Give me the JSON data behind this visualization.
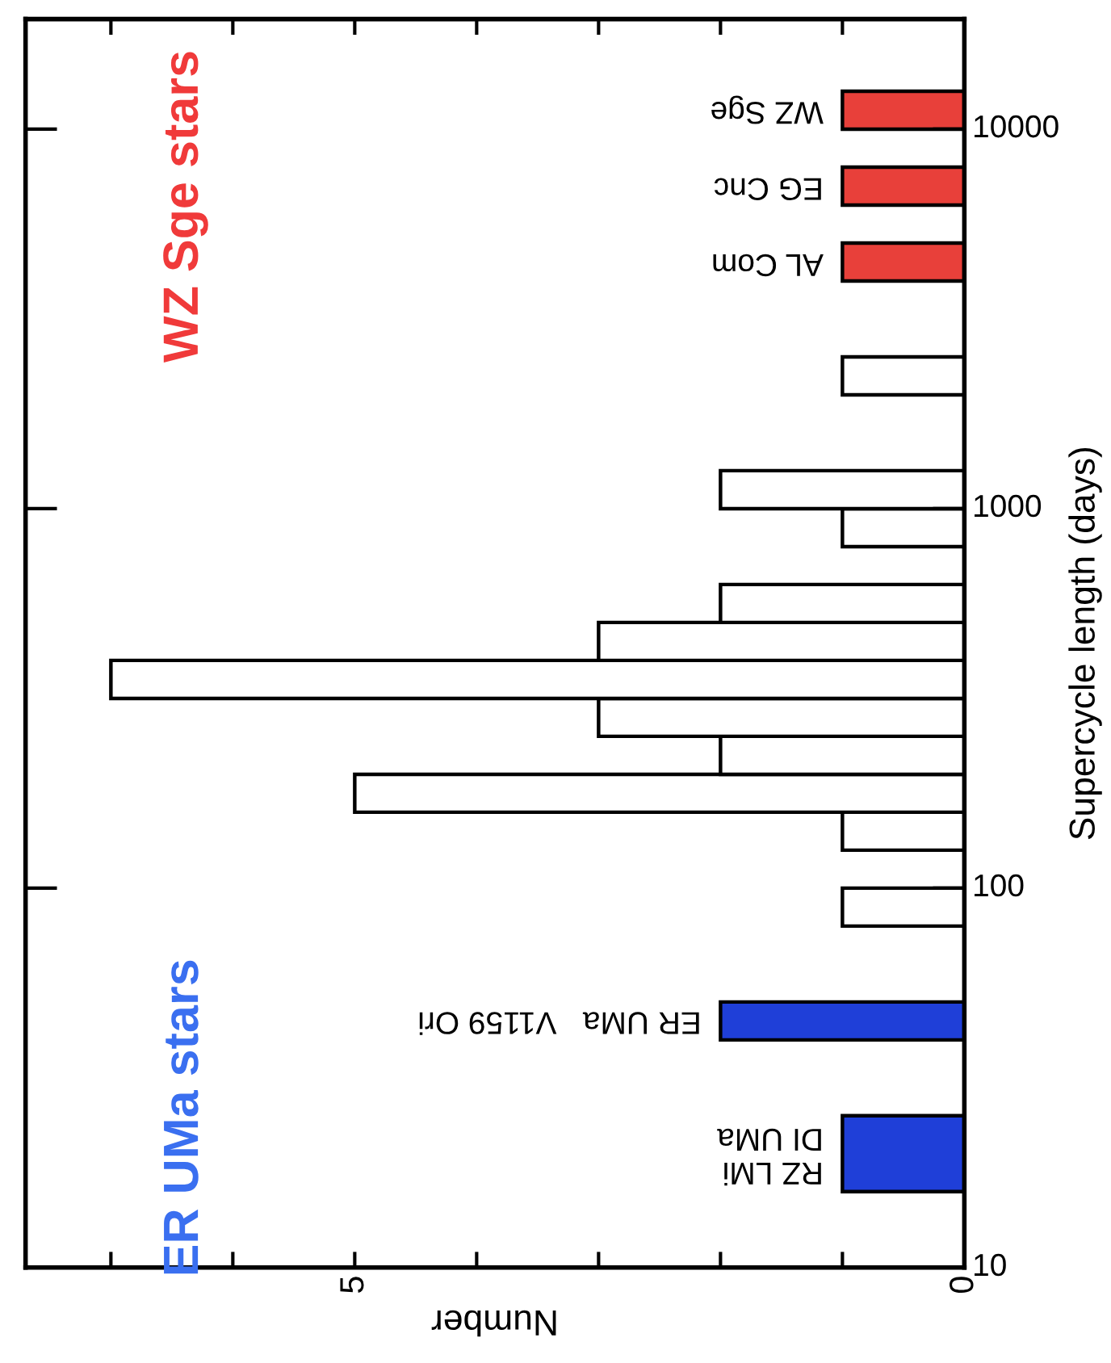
{
  "chart_data": {
    "type": "histogram",
    "orientation": "horizontal",
    "log": "y",
    "xlabel": "Number",
    "ylabel": "Supercycle length (days)",
    "bins": [
      15.85,
      25.12,
      39.81,
      50.12,
      79.43,
      100,
      125.9,
      158.5,
      199.5,
      251.2,
      316.2,
      398.1,
      501.2,
      631,
      794.3,
      1000,
      1259,
      1995,
      2512,
      3981,
      5012,
      6310,
      7943,
      10000,
      12589
    ],
    "values": [
      1,
      0,
      2,
      0,
      1,
      0,
      1,
      5,
      2,
      3,
      7,
      3,
      2,
      0,
      1,
      2,
      0,
      1,
      0,
      1,
      0,
      1,
      0,
      1
    ],
    "colors": [
      "#1f3fd8",
      "#ffffff",
      "#1f3fd8",
      "#ffffff",
      "#ffffff",
      "#ffffff",
      "#ffffff",
      "#ffffff",
      "#ffffff",
      "#ffffff",
      "#ffffff",
      "#ffffff",
      "#ffffff",
      "#ffffff",
      "#ffffff",
      "#ffffff",
      "#ffffff",
      "#ffffff",
      "#ffffff",
      "#e8403a",
      "#ffffff",
      "#e8403a",
      "#ffffff",
      "#e8403a"
    ],
    "xlim": [
      7.7,
      0
    ],
    "xticks": [
      0,
      {
        "value": 1,
        "label": null
      },
      {
        "value": 2,
        "label": null
      },
      {
        "value": 3,
        "label": null
      },
      {
        "value": 4,
        "label": null
      },
      5,
      {
        "value": 6,
        "label": null
      },
      {
        "value": 7,
        "label": null
      }
    ],
    "ylim": [
      10,
      19500
    ],
    "yticks": [
      10,
      100,
      1000,
      10000
    ],
    "grid": false,
    "legend": false,
    "annotations": [
      "RZ LMi\nDI UMa",
      "ER UMa   V1159 Ori",
      "AL Com",
      "EG Cnc",
      "WZ Sge",
      "ER UMa stars",
      "WZ Sge stars"
    ]
  }
}
